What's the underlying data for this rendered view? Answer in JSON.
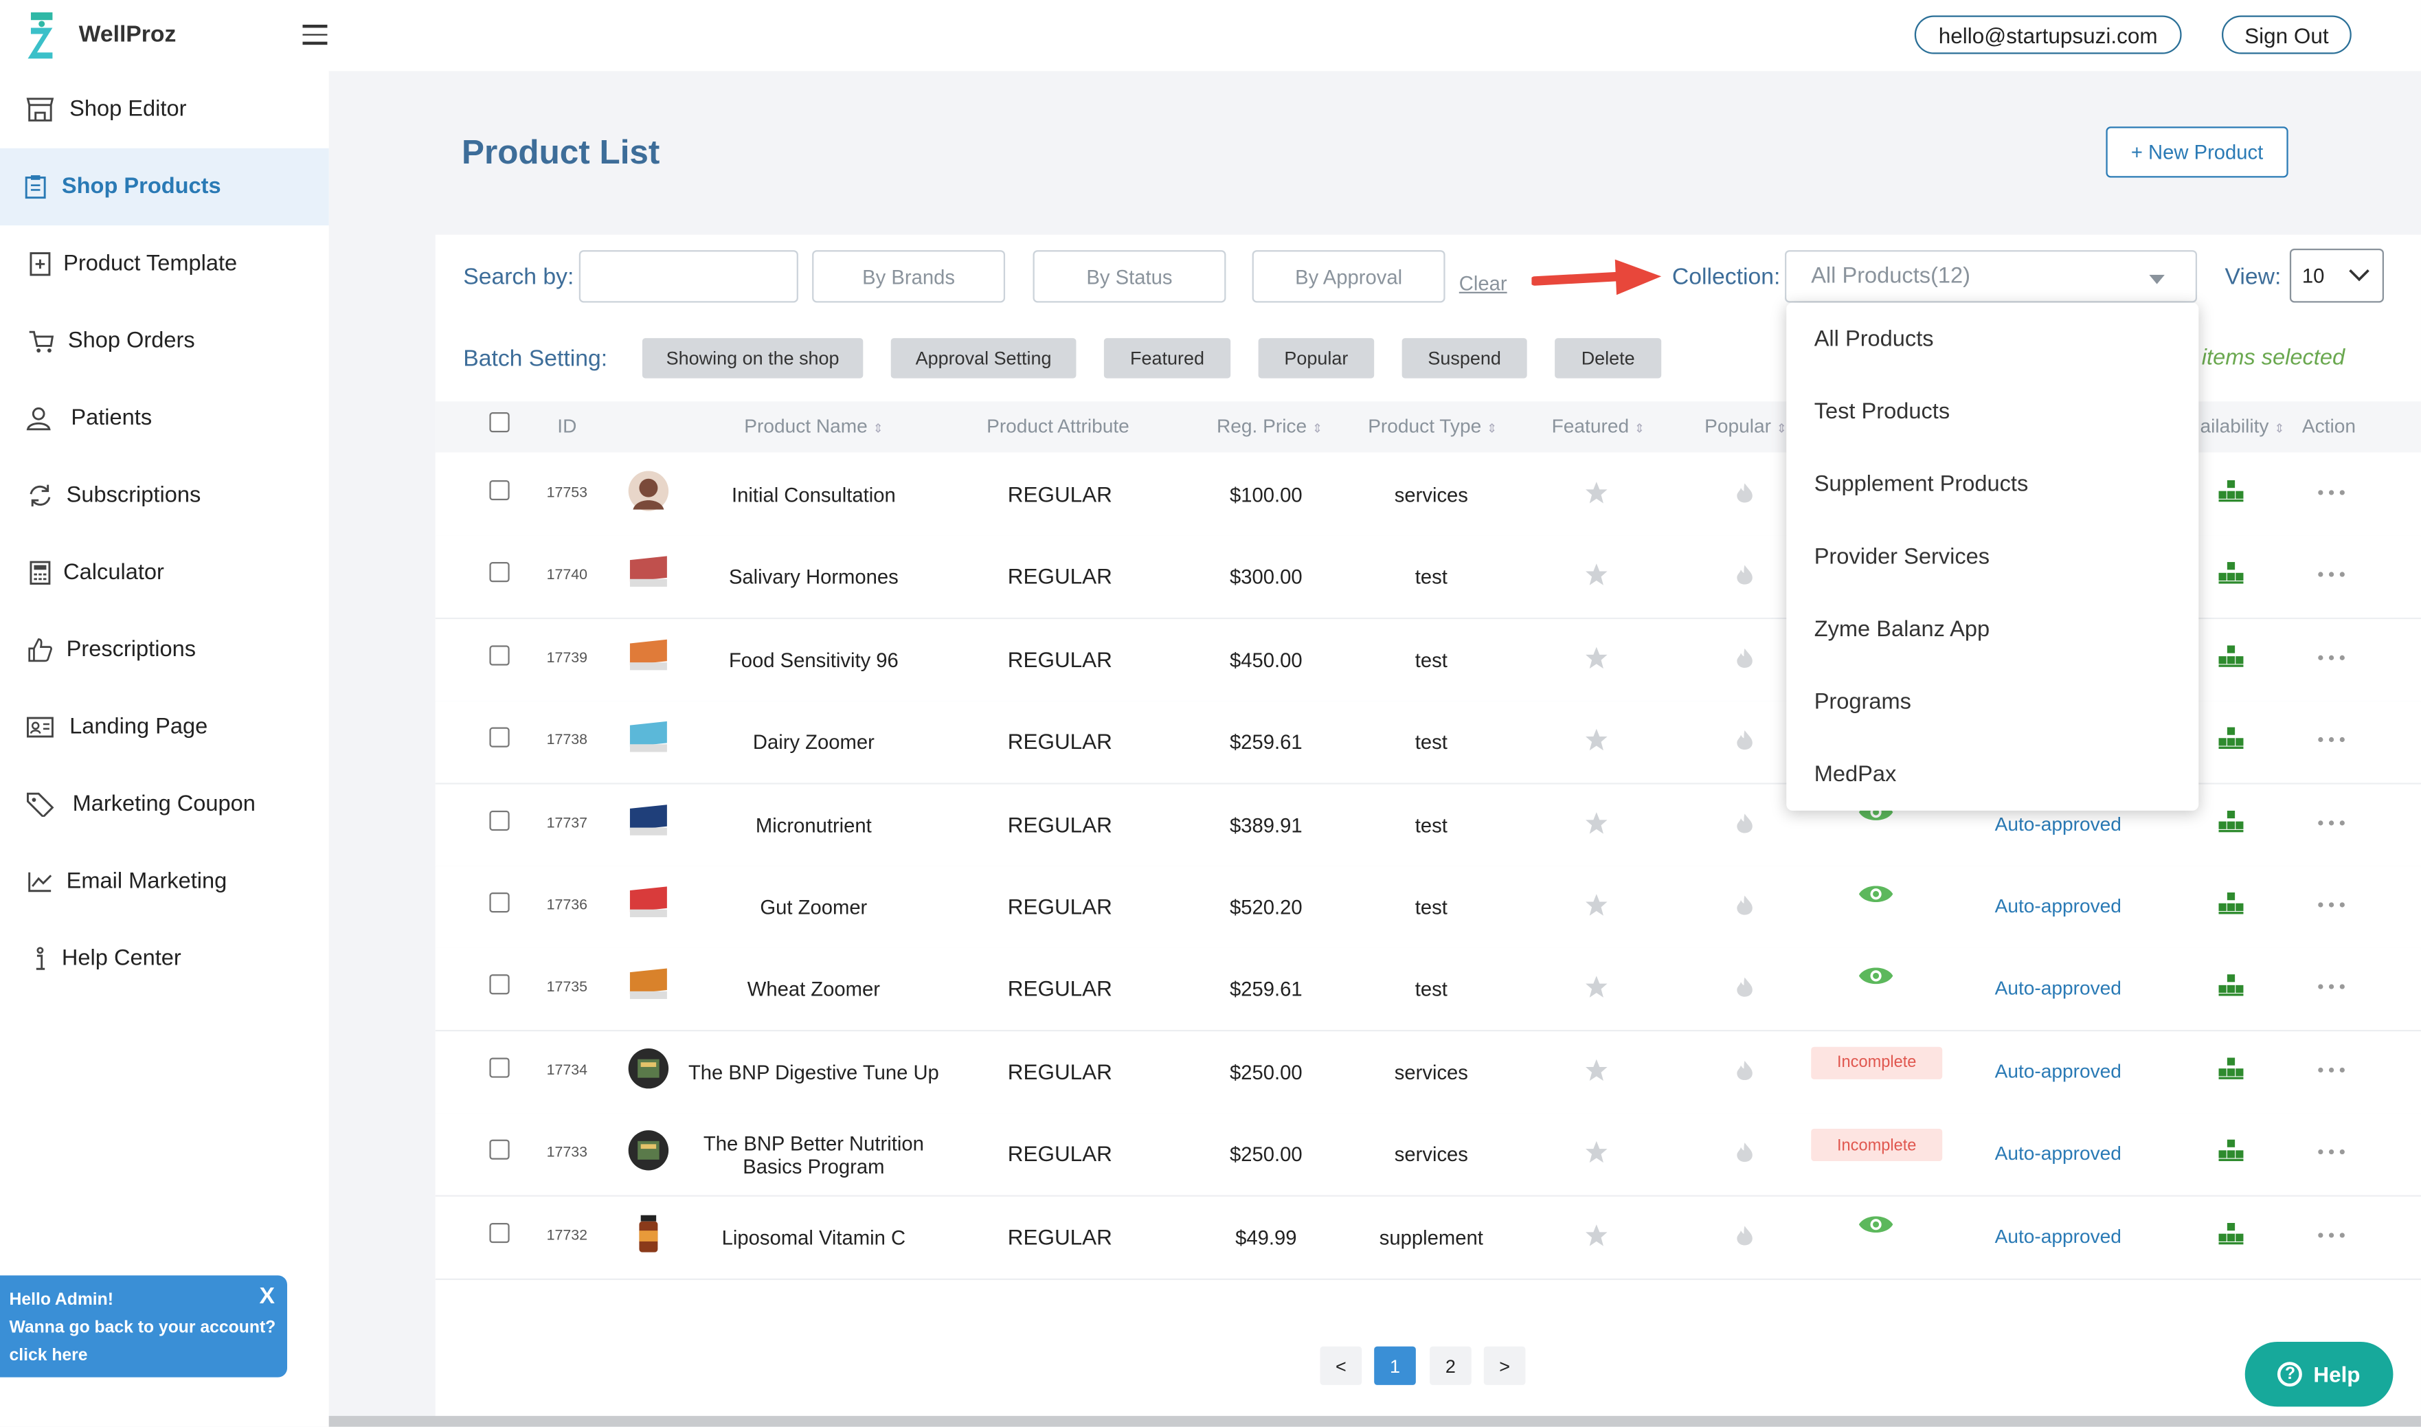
{
  "app": {
    "brand": "WellProz"
  },
  "header": {
    "email": "hello@startupsuzi.com",
    "sign_out": "Sign Out"
  },
  "sidebar": {
    "items": [
      {
        "label": "Shop Editor",
        "icon": "store-icon"
      },
      {
        "label": "Shop Products",
        "icon": "clipboard-icon",
        "active": true
      },
      {
        "label": "Product Template",
        "icon": "add-document-icon"
      },
      {
        "label": "Shop Orders",
        "icon": "cart-icon"
      },
      {
        "label": "Patients",
        "icon": "user-icon"
      },
      {
        "label": "Subscriptions",
        "icon": "refresh-icon"
      },
      {
        "label": "Calculator",
        "icon": "calculator-icon"
      },
      {
        "label": "Prescriptions",
        "icon": "thumbs-up-icon"
      },
      {
        "label": "Landing Page",
        "icon": "id-card-icon"
      },
      {
        "label": "Marketing Coupon",
        "icon": "tag-icon"
      },
      {
        "label": "Email Marketing",
        "icon": "chart-line-icon"
      },
      {
        "label": "Help Center",
        "icon": "info-icon"
      }
    ]
  },
  "account_banner": {
    "line1": "Hello Admin!",
    "line2": "Wanna go back to your account?",
    "line3": "click here",
    "close": "X"
  },
  "page": {
    "title": "Product List",
    "new_product": "+ New Product"
  },
  "filters": {
    "search_label": "Search by:",
    "search_value": "",
    "by_brands": "By Brands",
    "by_status": "By Status",
    "by_approval": "By Approval",
    "clear": "Clear",
    "collection_label": "Collection:",
    "collection_value": "All Products(12)",
    "view_label": "View:",
    "view_value": "10"
  },
  "batch": {
    "label": "Batch Setting:",
    "buttons": [
      "Showing on the shop",
      "Approval Setting",
      "Featured",
      "Popular",
      "Suspend",
      "Delete"
    ],
    "items_selected": "items selected"
  },
  "table": {
    "headers": {
      "id": "ID",
      "name": "Product Name",
      "attribute": "Product Attribute",
      "price": "Reg. Price",
      "type": "Product Type",
      "featured": "Featured",
      "popular": "Popular",
      "availability": "ailability",
      "action": "Action"
    },
    "rows": [
      {
        "id": "17753",
        "name": "Initial Consultation",
        "attribute": "REGULAR",
        "price": "$100.00",
        "type": "services",
        "show": "",
        "approval": "",
        "thumb": "#7a4a3a"
      },
      {
        "id": "17740",
        "name": "Salivary Hormones",
        "attribute": "REGULAR",
        "price": "$300.00",
        "type": "test",
        "show": "",
        "approval": "",
        "thumb": "#c0504d"
      },
      {
        "id": "17739",
        "name": "Food Sensitivity 96",
        "attribute": "REGULAR",
        "price": "$450.00",
        "type": "test",
        "show": "",
        "approval": "",
        "thumb": "#e07b39"
      },
      {
        "id": "17738",
        "name": "Dairy Zoomer",
        "attribute": "REGULAR",
        "price": "$259.61",
        "type": "test",
        "show": "",
        "approval": "",
        "thumb": "#5bb8d9"
      },
      {
        "id": "17737",
        "name": "Micronutrient",
        "attribute": "REGULAR",
        "price": "$389.91",
        "type": "test",
        "show": "eye",
        "approval": "Auto-approved",
        "thumb": "#1f3f7a"
      },
      {
        "id": "17736",
        "name": "Gut Zoomer",
        "attribute": "REGULAR",
        "price": "$520.20",
        "type": "test",
        "show": "eye",
        "approval": "Auto-approved",
        "thumb": "#d93b3b"
      },
      {
        "id": "17735",
        "name": "Wheat Zoomer",
        "attribute": "REGULAR",
        "price": "$259.61",
        "type": "test",
        "show": "eye",
        "approval": "Auto-approved",
        "thumb": "#d9822b"
      },
      {
        "id": "17734",
        "name": "The BNP Digestive Tune Up",
        "attribute": "REGULAR",
        "price": "$250.00",
        "type": "services",
        "show": "Incomplete",
        "approval": "Auto-approved",
        "thumb": "#2a2a2a"
      },
      {
        "id": "17733",
        "name": "The BNP Better Nutrition Basics Program",
        "attribute": "REGULAR",
        "price": "$250.00",
        "type": "services",
        "show": "Incomplete",
        "approval": "Auto-approved",
        "thumb": "#2a2a2a"
      },
      {
        "id": "17732",
        "name": "Liposomal Vitamin C",
        "attribute": "REGULAR",
        "price": "$49.99",
        "type": "supplement",
        "show": "eye",
        "approval": "Auto-approved",
        "thumb": "#8a3a1a"
      }
    ]
  },
  "collection_dropdown": {
    "options": [
      "All Products",
      "Test Products",
      "Supplement Products",
      "Provider Services",
      "Zyme Balanz App",
      "Programs",
      "MedPax"
    ]
  },
  "pagination": {
    "prev": "<",
    "pages": [
      "1",
      "2"
    ],
    "current": "1",
    "next": ">"
  },
  "help": {
    "label": "Help"
  },
  "colors": {
    "accent": "#2a7ab5",
    "title": "#3d6d99",
    "green": "#5cb85c",
    "help": "#17a99b",
    "incomplete": "#e0574f"
  }
}
